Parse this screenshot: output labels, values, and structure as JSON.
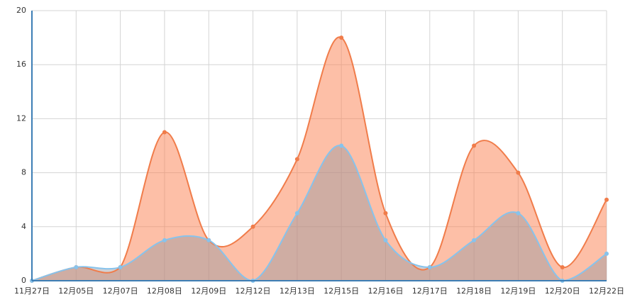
{
  "chart_data": {
    "type": "area",
    "categories": [
      "11月27日",
      "12月05日",
      "12月07日",
      "12月08日",
      "12月09日",
      "12月12日",
      "12月13日",
      "12月15日",
      "12月16日",
      "12月17日",
      "12月18日",
      "12月19日",
      "12月20日",
      "12月22日"
    ],
    "series": [
      {
        "color": "#f07c4a",
        "values": [
          0,
          1,
          1,
          11,
          3,
          4,
          9,
          18,
          5,
          1,
          10,
          8,
          1,
          6
        ]
      },
      {
        "color": "#87c3ec",
        "values": [
          0,
          1,
          1,
          3,
          3,
          0,
          5,
          10,
          3,
          1,
          3,
          5,
          0,
          2
        ]
      }
    ],
    "ylim": [
      0,
      20
    ],
    "yticks": [
      0,
      4,
      8,
      12,
      16,
      20
    ],
    "grid": true
  }
}
